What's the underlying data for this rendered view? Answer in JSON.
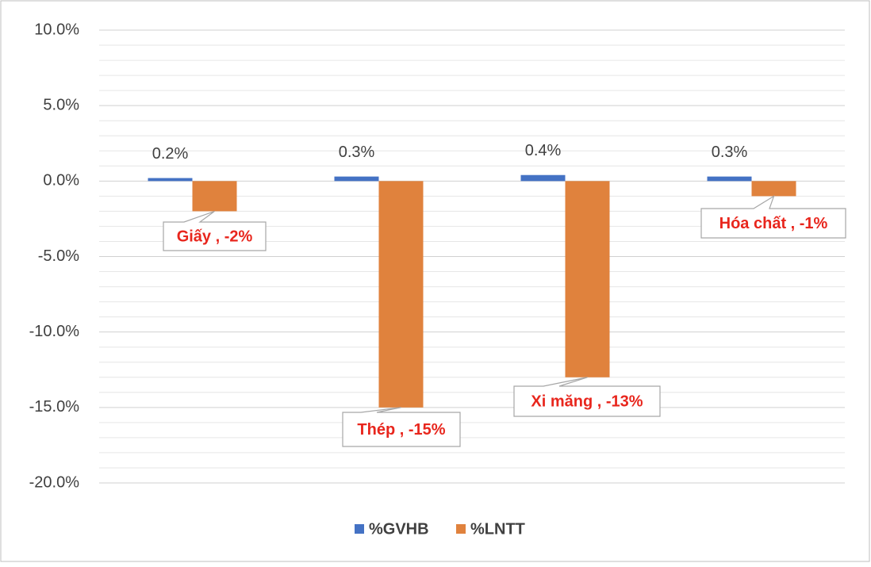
{
  "chart_data": {
    "type": "bar",
    "categories": [
      null,
      null,
      null,
      null
    ],
    "series": [
      {
        "name": "%GVHB",
        "color": "#4472c4",
        "values": [
          0.2,
          0.3,
          0.4,
          0.3
        ],
        "value_labels": [
          "0.2%",
          "0.3%",
          "0.4%",
          "0.3%"
        ]
      },
      {
        "name": "%LNTT",
        "color": "#e0823d",
        "values": [
          -2,
          -15,
          -13,
          -1
        ],
        "value_labels": [
          "Giấy , -2%",
          "Thép , -15%",
          "Xi măng , -13%",
          "Hóa chất , -1%"
        ]
      }
    ],
    "ylim": [
      -20,
      10
    ],
    "yticks": [
      {
        "value": -20,
        "label": "-20.0%"
      },
      {
        "value": -15,
        "label": "-15.0%"
      },
      {
        "value": -10,
        "label": "-10.0%"
      },
      {
        "value": -5,
        "label": "-5.0%"
      },
      {
        "value": 0,
        "label": "0.0%"
      },
      {
        "value": 5,
        "label": "5.0%"
      },
      {
        "value": 10,
        "label": "10.0%"
      }
    ],
    "grid": true,
    "minor_grid": true,
    "legend": "bottom"
  }
}
